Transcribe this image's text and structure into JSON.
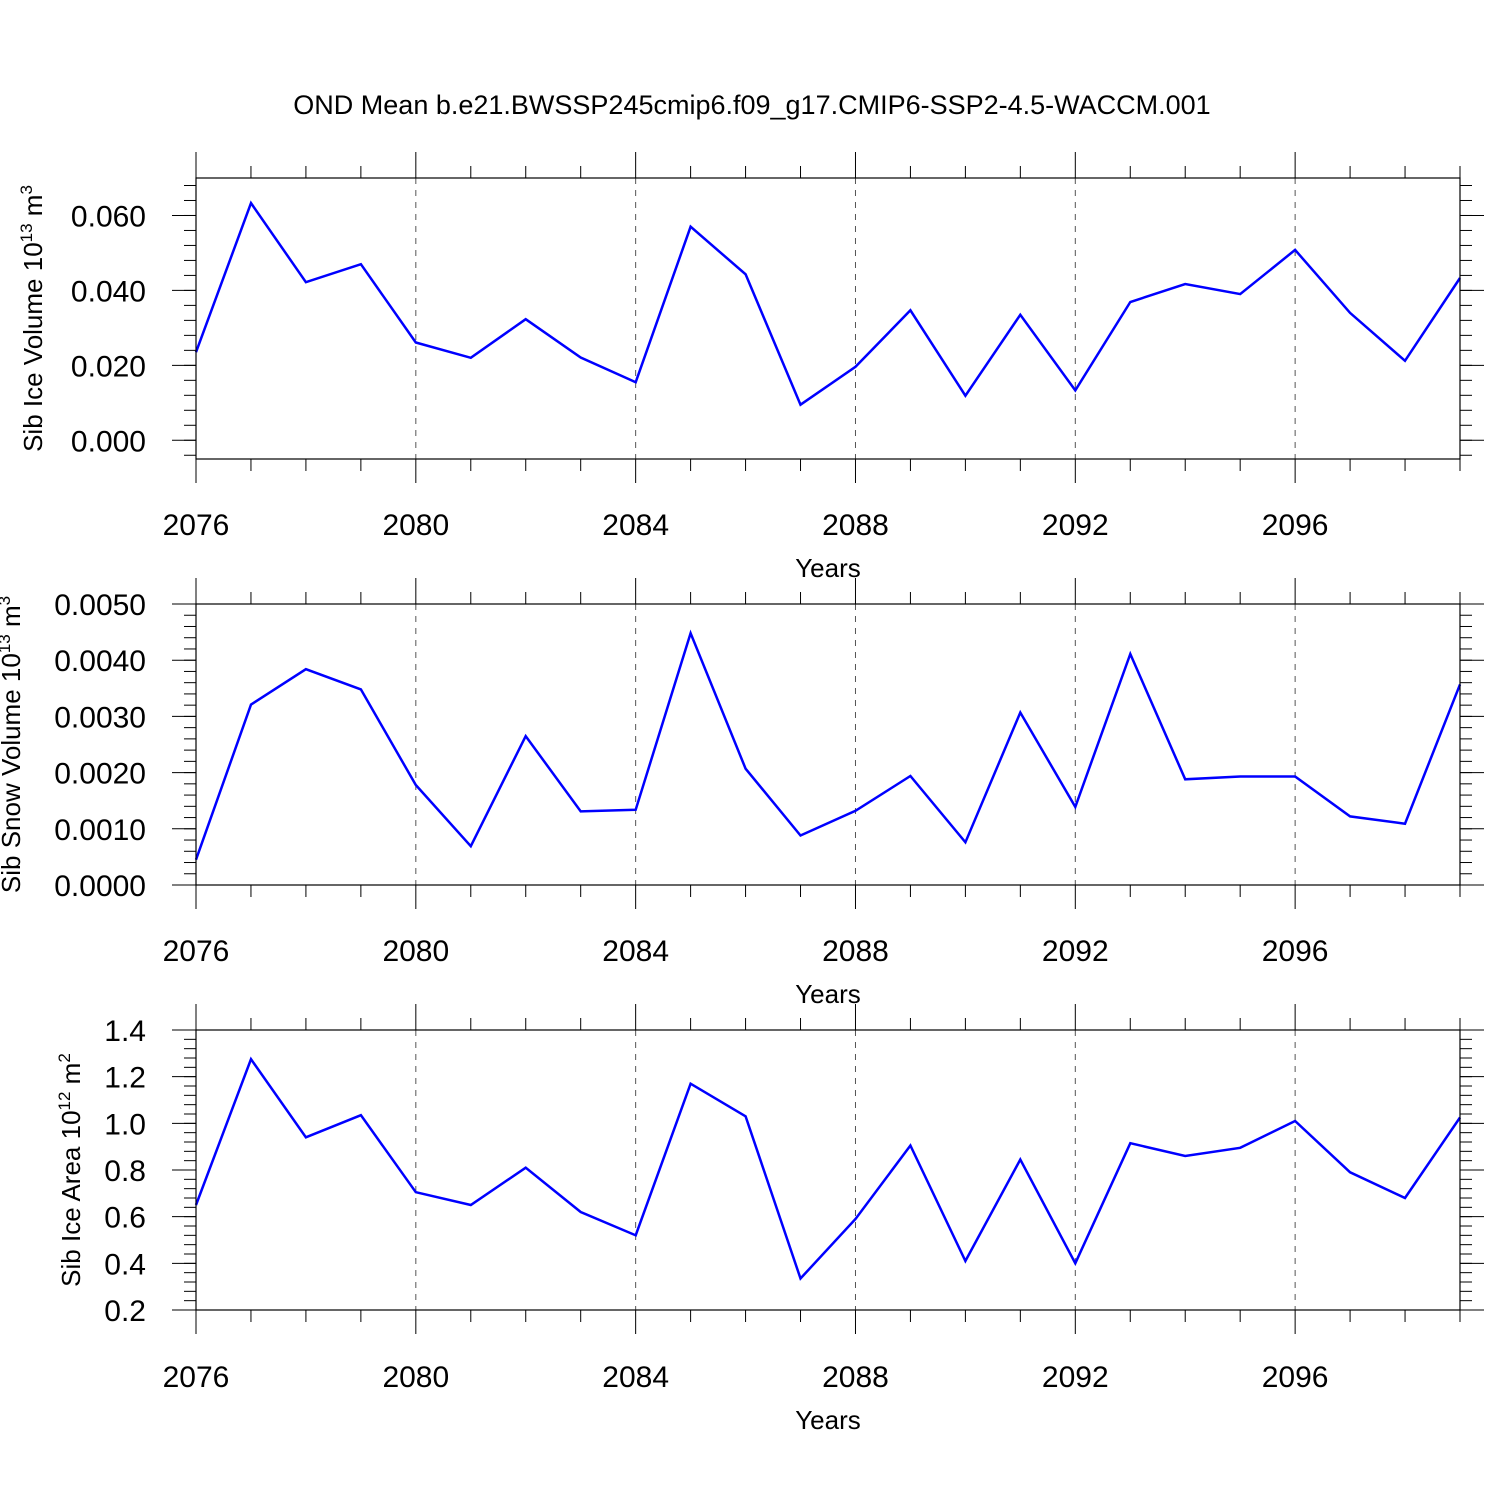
{
  "title": "OND Mean b.e21.BWSSP245cmip6.f09_g17.CMIP6-SSP2-4.5-WACCM.001",
  "line_color": "#0000ff",
  "chart_data": [
    {
      "type": "line",
      "xlabel": "Years",
      "ylabel": {
        "main": "Sib Ice Volume 10",
        "sup1": "13",
        "mid": " m",
        "sup2": "3"
      },
      "xlim": [
        2076,
        2099
      ],
      "ylim": [
        -0.005,
        0.07
      ],
      "x_ticks": [
        2076,
        2080,
        2084,
        2088,
        2092,
        2096
      ],
      "x_tick_labels": [
        "2076",
        "2080",
        "2084",
        "2088",
        "2092",
        "2096"
      ],
      "y_ticks": [
        0.0,
        0.02,
        0.04,
        0.06
      ],
      "y_tick_labels": [
        "0.000",
        "0.020",
        "0.040",
        "0.060"
      ],
      "y_minor_step": 0.004,
      "grid": "vertical dashed at major x ticks",
      "series": [
        {
          "x": [
            2076,
            2077,
            2078,
            2079,
            2080,
            2081,
            2082,
            2083,
            2084,
            2085,
            2086,
            2087,
            2088,
            2089,
            2090,
            2091,
            2092,
            2093,
            2094,
            2095,
            2096,
            2097,
            2098,
            2099
          ],
          "values": [
            0.0235,
            0.0633,
            0.0422,
            0.047,
            0.0261,
            0.022,
            0.0323,
            0.0221,
            0.0155,
            0.057,
            0.0443,
            0.0095,
            0.0196,
            0.0347,
            0.0119,
            0.0335,
            0.0133,
            0.0369,
            0.0417,
            0.039,
            0.0508,
            0.034,
            0.0212,
            0.0433
          ]
        }
      ]
    },
    {
      "type": "line",
      "xlabel": "Years",
      "ylabel": {
        "main": "Sib Snow Volume 10",
        "sup1": "13",
        "mid": " m",
        "sup2": "3"
      },
      "xlim": [
        2076,
        2099
      ],
      "ylim": [
        0.0,
        0.005
      ],
      "x_ticks": [
        2076,
        2080,
        2084,
        2088,
        2092,
        2096
      ],
      "x_tick_labels": [
        "2076",
        "2080",
        "2084",
        "2088",
        "2092",
        "2096"
      ],
      "y_ticks": [
        0.0,
        0.001,
        0.002,
        0.003,
        0.004,
        0.005
      ],
      "y_tick_labels": [
        "0.0000",
        "0.0010",
        "0.0020",
        "0.0030",
        "0.0040",
        "0.0050"
      ],
      "y_minor_step": 0.0002,
      "grid": "vertical dashed at major x ticks",
      "series": [
        {
          "x": [
            2076,
            2077,
            2078,
            2079,
            2080,
            2081,
            2082,
            2083,
            2084,
            2085,
            2086,
            2087,
            2088,
            2089,
            2090,
            2091,
            2092,
            2093,
            2094,
            2095,
            2096,
            2097,
            2098,
            2099
          ],
          "values": [
            0.00045,
            0.00321,
            0.00384,
            0.00348,
            0.00178,
            0.00069,
            0.00265,
            0.00131,
            0.00134,
            0.00448,
            0.00207,
            0.00088,
            0.00132,
            0.00194,
            0.00076,
            0.00307,
            0.00139,
            0.00411,
            0.00188,
            0.00193,
            0.00193,
            0.00122,
            0.00109,
            0.00357
          ]
        }
      ]
    },
    {
      "type": "line",
      "xlabel": "Years",
      "ylabel": {
        "main": "Sib Ice Area 10",
        "sup1": "12",
        "mid": " m",
        "sup2": "2"
      },
      "xlim": [
        2076,
        2099
      ],
      "ylim": [
        0.2,
        1.4
      ],
      "x_ticks": [
        2076,
        2080,
        2084,
        2088,
        2092,
        2096
      ],
      "x_tick_labels": [
        "2076",
        "2080",
        "2084",
        "2088",
        "2092",
        "2096"
      ],
      "y_ticks": [
        0.2,
        0.4,
        0.6,
        0.8,
        1.0,
        1.2,
        1.4
      ],
      "y_tick_labels": [
        "0.2",
        "0.4",
        "0.6",
        "0.8",
        "1.0",
        "1.2",
        "1.4"
      ],
      "y_minor_step": 0.04,
      "grid": "vertical dashed at major x ticks",
      "series": [
        {
          "x": [
            2076,
            2077,
            2078,
            2079,
            2080,
            2081,
            2082,
            2083,
            2084,
            2085,
            2086,
            2087,
            2088,
            2089,
            2090,
            2091,
            2092,
            2093,
            2094,
            2095,
            2096,
            2097,
            2098,
            2099
          ],
          "values": [
            0.65,
            1.275,
            0.94,
            1.035,
            0.705,
            0.65,
            0.81,
            0.62,
            0.52,
            1.17,
            1.03,
            0.335,
            0.59,
            0.905,
            0.41,
            0.845,
            0.4,
            0.915,
            0.86,
            0.895,
            1.01,
            0.79,
            0.68,
            1.025
          ]
        }
      ]
    }
  ]
}
